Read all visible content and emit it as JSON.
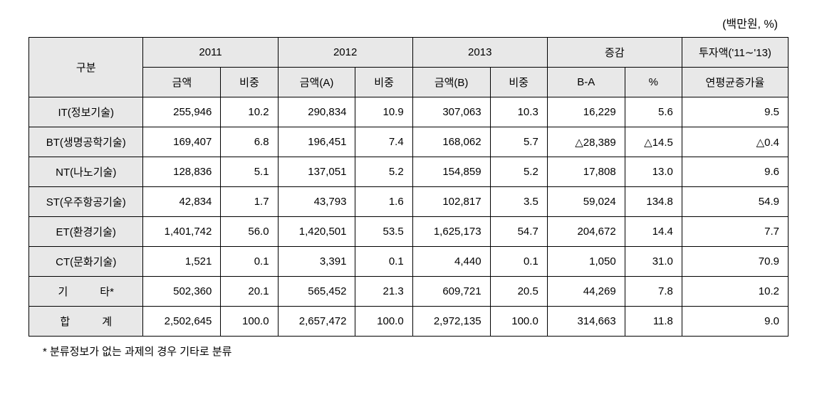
{
  "unit_label": "(백만원, %)",
  "header": {
    "category": "구분",
    "y2011": "2011",
    "y2012": "2012",
    "y2013": "2013",
    "change": "증감",
    "investment": "투자액('11∼'13)",
    "amount": "금액",
    "amount_a": "금액(A)",
    "amount_b": "금액(B)",
    "pct": "비중",
    "b_minus_a": "B-A",
    "percent": "%",
    "cagr": "연평균증가율"
  },
  "rows": [
    {
      "label": "IT(정보기술)",
      "amt2011": "255,946",
      "pct2011": "10.2",
      "amt2012": "290,834",
      "pct2012": "10.9",
      "amt2013": "307,063",
      "pct2013": "10.3",
      "diff": "16,229",
      "diffpct": "5.6",
      "cagr": "9.5"
    },
    {
      "label": "BT(생명공학기술)",
      "amt2011": "169,407",
      "pct2011": "6.8",
      "amt2012": "196,451",
      "pct2012": "7.4",
      "amt2013": "168,062",
      "pct2013": "5.7",
      "diff": "△28,389",
      "diffpct": "△14.5",
      "cagr": "△0.4"
    },
    {
      "label": "NT(나노기술)",
      "amt2011": "128,836",
      "pct2011": "5.1",
      "amt2012": "137,051",
      "pct2012": "5.2",
      "amt2013": "154,859",
      "pct2013": "5.2",
      "diff": "17,808",
      "diffpct": "13.0",
      "cagr": "9.6"
    },
    {
      "label": "ST(우주항공기술)",
      "amt2011": "42,834",
      "pct2011": "1.7",
      "amt2012": "43,793",
      "pct2012": "1.6",
      "amt2013": "102,817",
      "pct2013": "3.5",
      "diff": "59,024",
      "diffpct": "134.8",
      "cagr": "54.9"
    },
    {
      "label": "ET(환경기술)",
      "amt2011": "1,401,742",
      "pct2011": "56.0",
      "amt2012": "1,420,501",
      "pct2012": "53.5",
      "amt2013": "1,625,173",
      "pct2013": "54.7",
      "diff": "204,672",
      "diffpct": "14.4",
      "cagr": "7.7"
    },
    {
      "label": "CT(문화기술)",
      "amt2011": "1,521",
      "pct2011": "0.1",
      "amt2012": "3,391",
      "pct2012": "0.1",
      "amt2013": "4,440",
      "pct2013": "0.1",
      "diff": "1,050",
      "diffpct": "31.0",
      "cagr": "70.9"
    },
    {
      "label": "기   타*",
      "amt2011": "502,360",
      "pct2011": "20.1",
      "amt2012": "565,452",
      "pct2012": "21.3",
      "amt2013": "609,721",
      "pct2013": "20.5",
      "diff": "44,269",
      "diffpct": "7.8",
      "cagr": "10.2"
    },
    {
      "label": "합   계",
      "amt2011": "2,502,645",
      "pct2011": "100.0",
      "amt2012": "2,657,472",
      "pct2012": "100.0",
      "amt2013": "2,972,135",
      "pct2013": "100.0",
      "diff": "314,663",
      "diffpct": "11.8",
      "cagr": "9.0"
    }
  ],
  "footnote": "* 분류정보가 없는 과제의 경우 기타로 분류",
  "styles": {
    "header_bg": "#e8e8e8",
    "border_color": "#000000",
    "text_color": "#000000",
    "font_size_body": 15,
    "font_size_unit": 16
  }
}
